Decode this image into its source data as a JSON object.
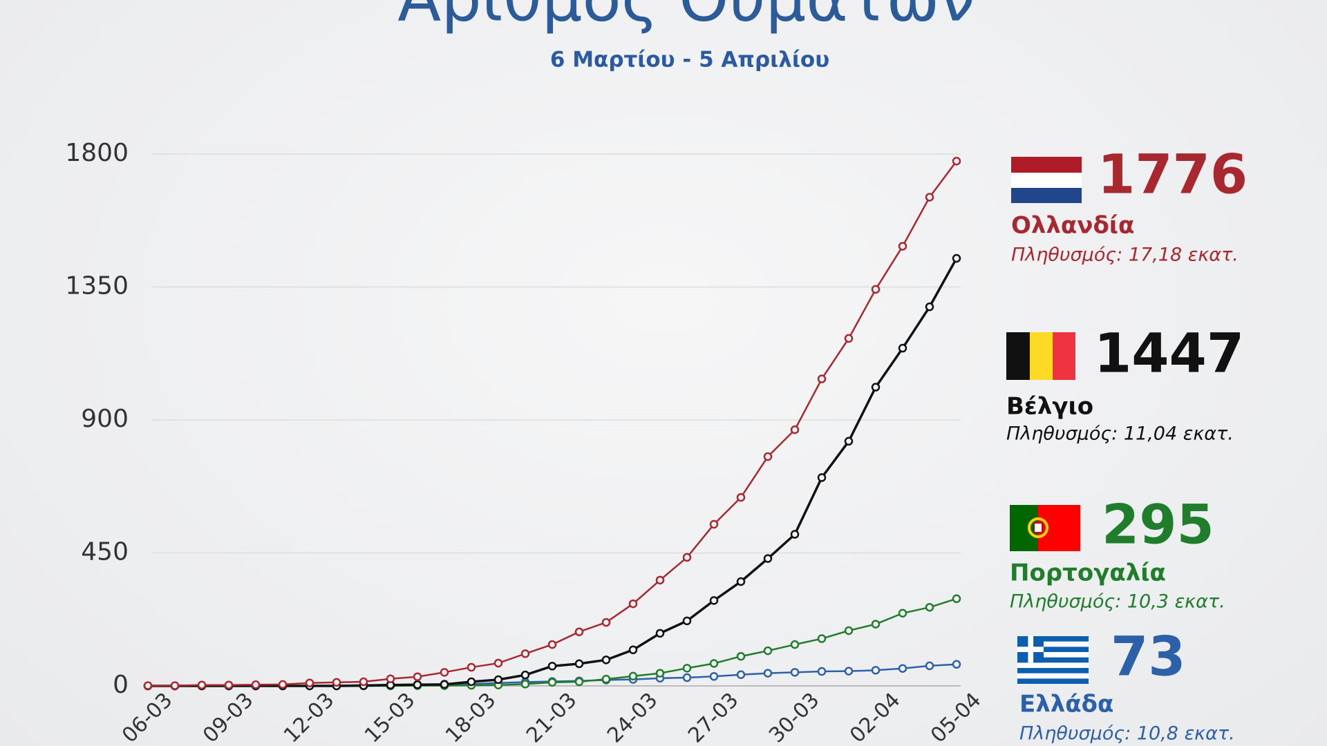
{
  "chart_data": {
    "type": "line",
    "title": "Αριθμός Θυμάτων",
    "subtitle": "6 Μαρτίου - 5 Απριλίου",
    "categories": [
      "06-03",
      null,
      null,
      "09-03",
      null,
      null,
      "12-03",
      null,
      null,
      "15-03",
      null,
      null,
      "18-03",
      null,
      null,
      "21-03",
      null,
      null,
      "24-03",
      null,
      null,
      "27-03",
      null,
      null,
      "30-03",
      null,
      null,
      "02-04",
      null,
      null,
      "05-04"
    ],
    "ylim": [
      0,
      1800
    ],
    "yticks": [
      0,
      450,
      900,
      1350,
      1800
    ],
    "grid": true,
    "series": [
      {
        "name": "Ολλανδία",
        "color": "#a8282f",
        "population": "Πληθυσμός: 17,18 εκατ.",
        "values": [
          1,
          1,
          3,
          3,
          4,
          5,
          10,
          12,
          14,
          24,
          31,
          46,
          63,
          77,
          109,
          140,
          183,
          215,
          278,
          358,
          435,
          547,
          638,
          776,
          867,
          1039,
          1176,
          1342,
          1488,
          1654,
          1776
        ]
      },
      {
        "name": "Βέλγιο",
        "color": "#111111",
        "population": "Πληθυσμός: 11,04 εκατ.",
        "values": [
          0,
          0,
          0,
          0,
          0,
          0,
          0,
          0,
          1,
          3,
          4,
          5,
          14,
          21,
          37,
          67,
          75,
          88,
          122,
          178,
          220,
          289,
          353,
          431,
          513,
          705,
          828,
          1011,
          1143,
          1283,
          1447
        ]
      },
      {
        "name": "Πορτογαλία",
        "color": "#1f7d2c",
        "population": "Πληθυσμός: 10,3 εκατ.",
        "values": [
          0,
          0,
          0,
          0,
          0,
          0,
          0,
          0,
          0,
          0,
          1,
          1,
          2,
          3,
          6,
          12,
          14,
          23,
          33,
          43,
          60,
          76,
          100,
          119,
          140,
          160,
          187,
          209,
          246,
          266,
          295
        ]
      },
      {
        "name": "Ελλάδα",
        "color": "#2c60a8",
        "population": "Πληθυσμός: 10,8 εκατ.",
        "values": [
          0,
          0,
          0,
          0,
          0,
          0,
          1,
          1,
          3,
          4,
          5,
          6,
          6,
          10,
          13,
          15,
          17,
          20,
          22,
          26,
          28,
          32,
          38,
          43,
          46,
          49,
          50,
          53,
          59,
          68,
          73
        ]
      }
    ]
  }
}
